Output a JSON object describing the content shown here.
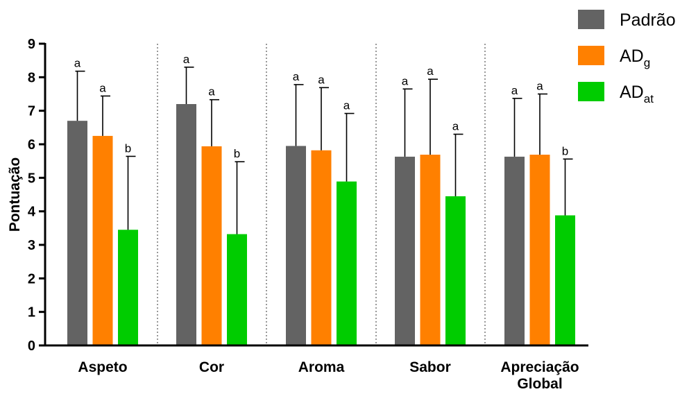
{
  "chart_data": {
    "type": "bar",
    "ylabel": "Pontuação",
    "ylim": [
      0,
      9
    ],
    "yticks": [
      "0",
      "1",
      "2",
      "3",
      "4",
      "5",
      "6",
      "7",
      "8",
      "9"
    ],
    "categories": [
      "Aspeto",
      "Cor",
      "Aroma",
      "Sabor",
      "Apreciação Global"
    ],
    "series": [
      {
        "name": "Padrão",
        "name_main": "Padrão",
        "name_sub": "",
        "color": "#636363",
        "values": [
          6.7,
          7.2,
          5.95,
          5.63,
          5.63
        ],
        "errors": [
          1.48,
          1.1,
          1.83,
          2.02,
          1.74
        ],
        "significance": [
          "a",
          "a",
          "a",
          "a",
          "a"
        ]
      },
      {
        "name": "ADg",
        "name_main": "AD",
        "name_sub": "g",
        "color": "#ff8000",
        "values": [
          6.25,
          5.94,
          5.82,
          5.69,
          5.69
        ],
        "errors": [
          1.19,
          1.39,
          1.87,
          2.25,
          1.81
        ],
        "significance": [
          "a",
          "a",
          "a",
          "a",
          "a"
        ]
      },
      {
        "name": "ADat",
        "name_main": "AD",
        "name_sub": "at",
        "color": "#00cc00",
        "values": [
          3.45,
          3.32,
          4.89,
          4.45,
          3.88
        ],
        "errors": [
          2.19,
          2.16,
          2.03,
          1.85,
          1.68
        ],
        "significance": [
          "b",
          "b",
          "a",
          "a",
          "b"
        ]
      }
    ],
    "legend_position": "top-right",
    "separators": "dotted vertical lines between categories",
    "grid": false
  }
}
